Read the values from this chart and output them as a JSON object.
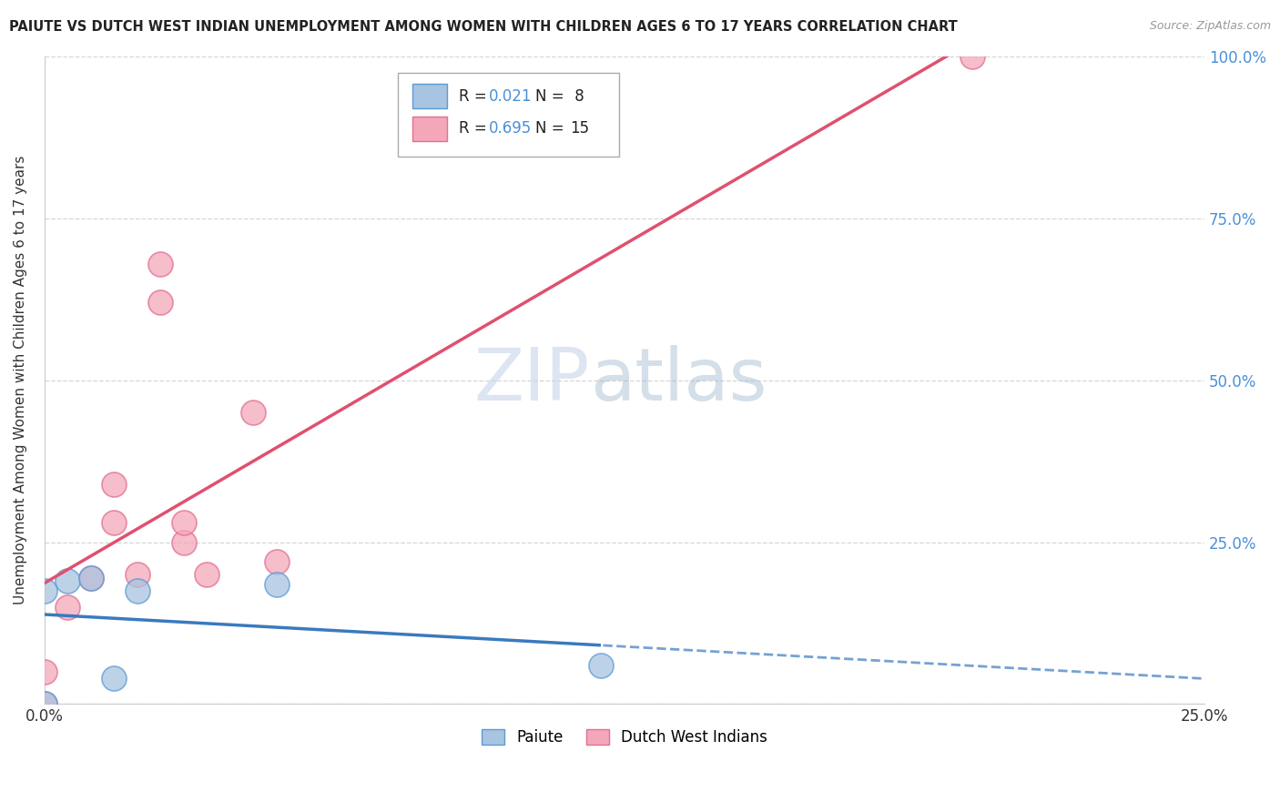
{
  "title": "PAIUTE VS DUTCH WEST INDIAN UNEMPLOYMENT AMONG WOMEN WITH CHILDREN AGES 6 TO 17 YEARS CORRELATION CHART",
  "source_text": "Source: ZipAtlas.com",
  "ylabel": "Unemployment Among Women with Children Ages 6 to 17 years",
  "xlim": [
    0.0,
    0.25
  ],
  "ylim": [
    0.0,
    1.0
  ],
  "xticks": [
    0.0,
    0.05,
    0.1,
    0.15,
    0.2,
    0.25
  ],
  "yticks": [
    0.0,
    0.25,
    0.5,
    0.75,
    1.0
  ],
  "xticklabels": [
    "0.0%",
    "",
    "",
    "",
    "",
    "25.0%"
  ],
  "paiute_x": [
    0.0,
    0.0,
    0.005,
    0.01,
    0.015,
    0.02,
    0.05,
    0.12
  ],
  "paiute_y": [
    0.0,
    0.175,
    0.19,
    0.195,
    0.04,
    0.175,
    0.185,
    0.06
  ],
  "dutch_x": [
    0.0,
    0.0,
    0.005,
    0.01,
    0.015,
    0.015,
    0.02,
    0.025,
    0.025,
    0.03,
    0.03,
    0.035,
    0.045,
    0.05,
    0.2
  ],
  "dutch_y": [
    0.0,
    0.05,
    0.15,
    0.195,
    0.28,
    0.34,
    0.2,
    0.62,
    0.68,
    0.25,
    0.28,
    0.2,
    0.45,
    0.22,
    1.0
  ],
  "paiute_color": "#a8c4e0",
  "dutch_color": "#f4a7b9",
  "paiute_edge_color": "#5b9bd5",
  "dutch_edge_color": "#e07090",
  "paiute_line_color": "#3a7abf",
  "dutch_line_color": "#e05070",
  "legend_R_paiute": "0.021",
  "legend_N_paiute": "8",
  "legend_R_dutch": "0.695",
  "legend_N_dutch": "15",
  "watermark_zip": "ZIP",
  "watermark_atlas": "atlas",
  "background_color": "#ffffff",
  "grid_color": "#cccccc",
  "right_axis_color": "#4a90d9"
}
